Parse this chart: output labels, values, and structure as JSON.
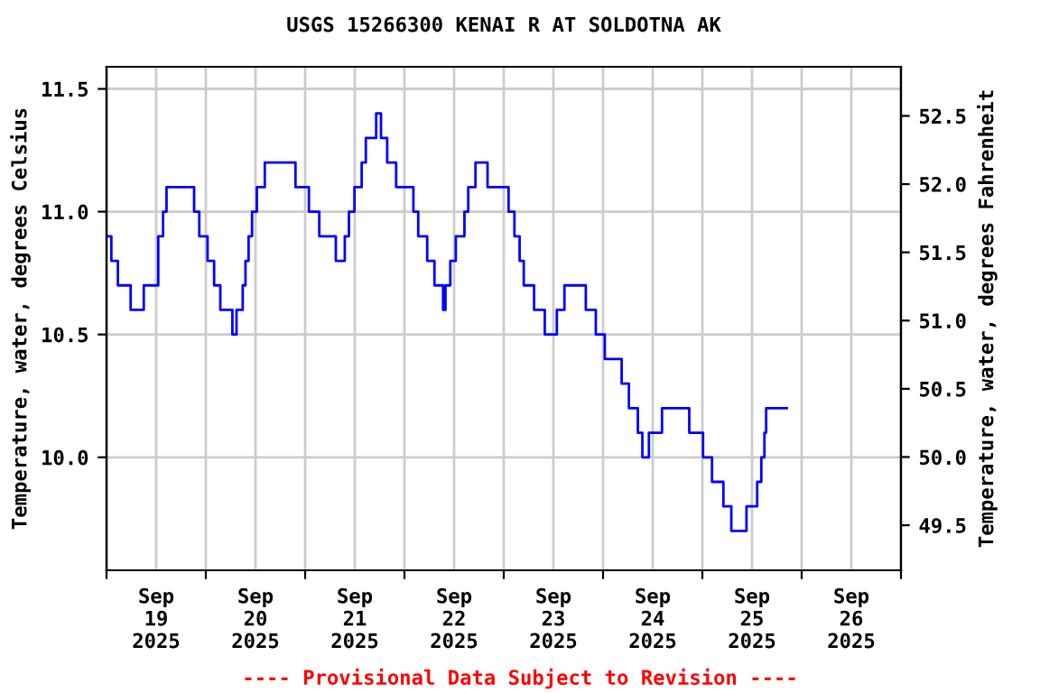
{
  "chart_data": {
    "type": "step",
    "title": "USGS 15266300 KENAI R AT SOLDOTNA AK",
    "ylabel": "Temperature, water, degrees Celsius",
    "y2label": "Temperature, water, degrees Fahrenheit",
    "x": [
      "2025-09-19T00:00",
      "2025-09-19T01:10",
      "2025-09-19T02:45",
      "2025-09-19T05:50",
      "2025-09-19T09:00",
      "2025-09-19T12:30",
      "2025-09-19T13:40",
      "2025-09-19T14:30",
      "2025-09-19T21:10",
      "2025-09-19T22:25",
      "2025-09-20T00:25",
      "2025-09-20T02:00",
      "2025-09-20T03:30",
      "2025-09-20T06:25",
      "2025-09-20T07:25",
      "2025-09-20T08:55",
      "2025-09-20T09:35",
      "2025-09-20T10:20",
      "2025-09-20T11:10",
      "2025-09-20T12:20",
      "2025-09-20T14:15",
      "2025-09-20T21:40",
      "2025-09-21T00:55",
      "2025-09-21T03:25",
      "2025-09-21T07:25",
      "2025-09-21T09:35",
      "2025-09-21T10:35",
      "2025-09-21T11:55",
      "2025-09-21T13:40",
      "2025-09-21T14:40",
      "2025-09-21T17:10",
      "2025-09-21T18:20",
      "2025-09-21T19:50",
      "2025-09-21T22:00",
      "2025-09-22T02:10",
      "2025-09-22T03:20",
      "2025-09-22T05:30",
      "2025-09-22T07:15",
      "2025-09-22T09:20",
      "2025-09-22T09:55",
      "2025-09-22T11:05",
      "2025-09-22T12:25",
      "2025-09-22T14:30",
      "2025-09-22T15:25",
      "2025-09-22T17:10",
      "2025-09-22T20:05",
      "2025-09-23T01:10",
      "2025-09-23T02:35",
      "2025-09-23T03:50",
      "2025-09-23T04:50",
      "2025-09-23T07:20",
      "2025-09-23T09:55",
      "2025-09-23T12:50",
      "2025-09-23T14:40",
      "2025-09-23T19:50",
      "2025-09-23T22:15",
      "2025-09-24T00:25",
      "2025-09-24T04:30",
      "2025-09-24T06:15",
      "2025-09-24T08:25",
      "2025-09-24T09:30",
      "2025-09-24T11:05",
      "2025-09-24T14:15",
      "2025-09-24T20:50",
      "2025-09-25T00:10",
      "2025-09-25T02:20",
      "2025-09-25T05:05",
      "2025-09-25T07:00",
      "2025-09-25T10:40",
      "2025-09-25T13:15",
      "2025-09-25T14:15",
      "2025-09-25T15:00",
      "2025-09-25T15:25",
      "2025-09-25T20:25"
    ],
    "series": [
      {
        "color": "#0000ff",
        "values": [
          10.9,
          10.8,
          10.7,
          10.6,
          10.7,
          10.9,
          11.0,
          11.1,
          11.0,
          10.9,
          10.8,
          10.7,
          10.6,
          10.5,
          10.6,
          10.7,
          10.8,
          10.9,
          11.0,
          11.1,
          11.2,
          11.1,
          11.0,
          10.9,
          10.8,
          10.9,
          11.0,
          11.1,
          11.2,
          11.3,
          11.4,
          11.3,
          11.2,
          11.1,
          11.0,
          10.9,
          10.8,
          10.7,
          10.6,
          10.7,
          10.8,
          10.9,
          11.0,
          11.1,
          11.2,
          11.1,
          11.0,
          10.9,
          10.8,
          10.7,
          10.6,
          10.5,
          10.6,
          10.7,
          10.6,
          10.5,
          10.4,
          10.3,
          10.2,
          10.1,
          10.0,
          10.1,
          10.2,
          10.1,
          10.0,
          9.9,
          9.8,
          9.7,
          9.8,
          9.9,
          10.0,
          10.1,
          10.2,
          10.2
        ]
      }
    ],
    "xlim": [
      "2025-09-19T00:00",
      "2025-09-27T00:00"
    ],
    "xticks": [
      {
        "value": "2025-09-19T00:00",
        "label": null
      },
      {
        "value": "2025-09-19T12:00",
        "label": "Sep\n19\n2025"
      },
      {
        "value": "2025-09-20T00:00",
        "label": null
      },
      {
        "value": "2025-09-20T12:00",
        "label": "Sep\n20\n2025"
      },
      {
        "value": "2025-09-21T00:00",
        "label": null
      },
      {
        "value": "2025-09-21T12:00",
        "label": "Sep\n21\n2025"
      },
      {
        "value": "2025-09-22T00:00",
        "label": null
      },
      {
        "value": "2025-09-22T12:00",
        "label": "Sep\n22\n2025"
      },
      {
        "value": "2025-09-23T00:00",
        "label": null
      },
      {
        "value": "2025-09-23T12:00",
        "label": "Sep\n23\n2025"
      },
      {
        "value": "2025-09-24T00:00",
        "label": null
      },
      {
        "value": "2025-09-24T12:00",
        "label": "Sep\n24\n2025"
      },
      {
        "value": "2025-09-25T00:00",
        "label": null
      },
      {
        "value": "2025-09-25T12:00",
        "label": "Sep\n25\n2025"
      },
      {
        "value": "2025-09-26T00:00",
        "label": null
      },
      {
        "value": "2025-09-26T12:00",
        "label": "Sep\n26\n2025"
      },
      {
        "value": "2025-09-27T00:00",
        "label": null
      }
    ],
    "ylim": [
      9.54,
      11.59
    ],
    "yticks": [
      {
        "value": 10.0,
        "label": "10.0"
      },
      {
        "value": 10.5,
        "label": "10.5"
      },
      {
        "value": 11.0,
        "label": "11.0"
      },
      {
        "value": 11.5,
        "label": "11.5"
      }
    ],
    "y2lim": [
      49.17,
      52.86
    ],
    "y2ticks": [
      {
        "value": 49.5,
        "label": "49.5"
      },
      {
        "value": 50.0,
        "label": "50.0"
      },
      {
        "value": 50.5,
        "label": "50.5"
      },
      {
        "value": 51.0,
        "label": "51.0"
      },
      {
        "value": 51.5,
        "label": "51.5"
      },
      {
        "value": 52.0,
        "label": "52.0"
      },
      {
        "value": 52.5,
        "label": "52.5"
      }
    ],
    "grid": true,
    "legend": false,
    "annotations": [
      "---- Provisional Data Subject to Revision ----"
    ]
  }
}
